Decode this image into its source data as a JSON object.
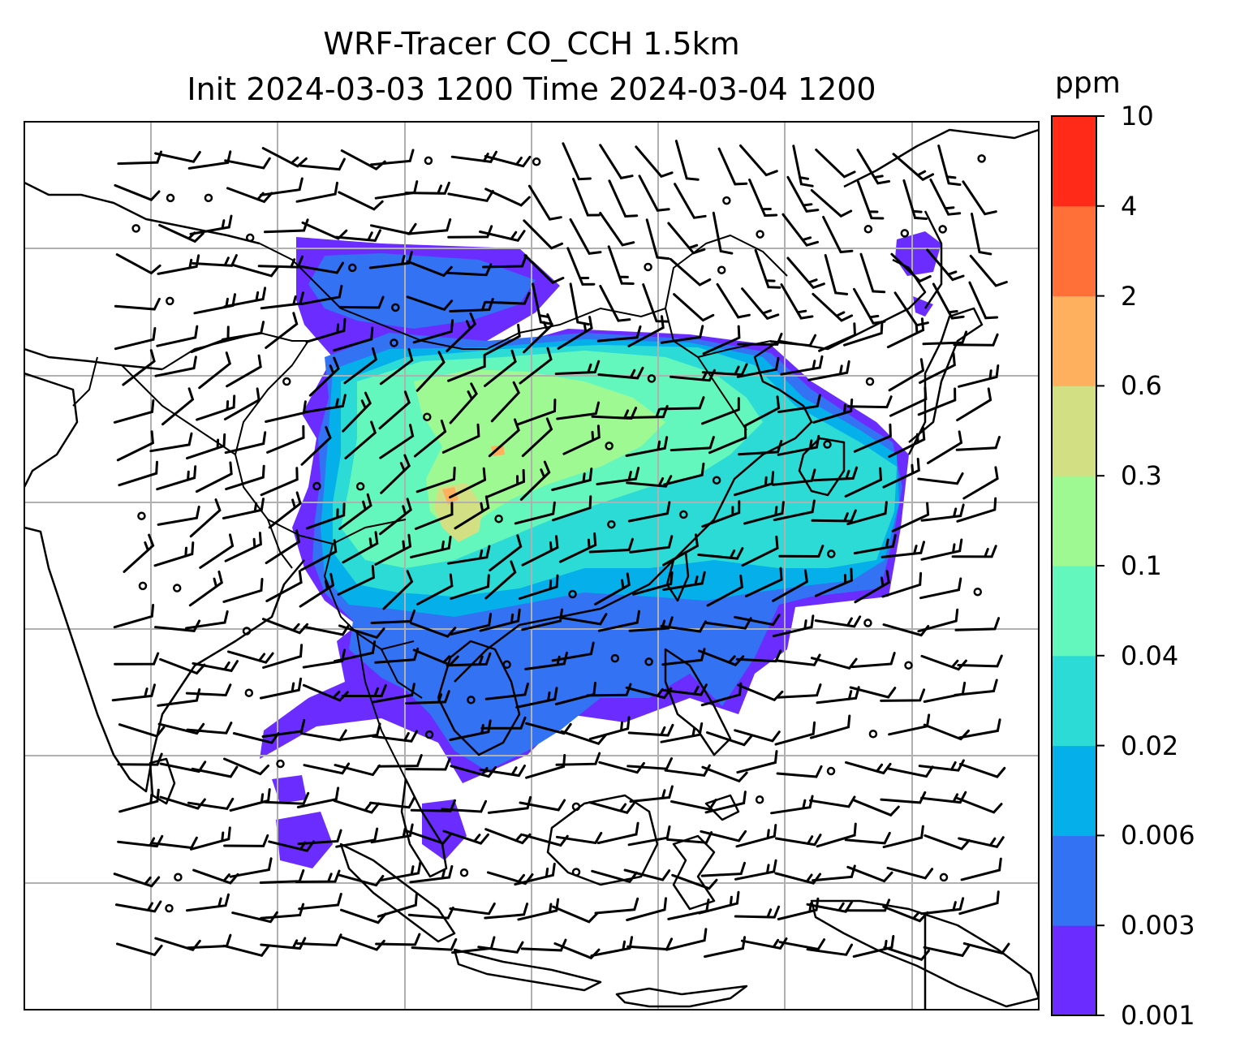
{
  "title": {
    "line1": "WRF-Tracer CO_CCH 1.5km",
    "line2": "Init 2024-03-03 1200 Time 2024-03-04 1200"
  },
  "colorbar": {
    "unit": "ppm",
    "levels": [
      "0.001",
      "0.003",
      "0.006",
      "0.02",
      "0.04",
      "0.1",
      "0.3",
      "0.6",
      "2",
      "4",
      "10"
    ],
    "colors": [
      "#6a2cff",
      "#3372f3",
      "#05b0ea",
      "#2ddbd6",
      "#64f7bd",
      "#9ff993",
      "#d2e083",
      "#ffb05e",
      "#ff7038",
      "#ff2a18"
    ]
  },
  "map": {
    "field": "CO_CCH tracer concentration",
    "level": "1.5km",
    "overlays": [
      "coastlines",
      "national-borders",
      "lat-lon-gridlines",
      "wind-barbs"
    ]
  }
}
